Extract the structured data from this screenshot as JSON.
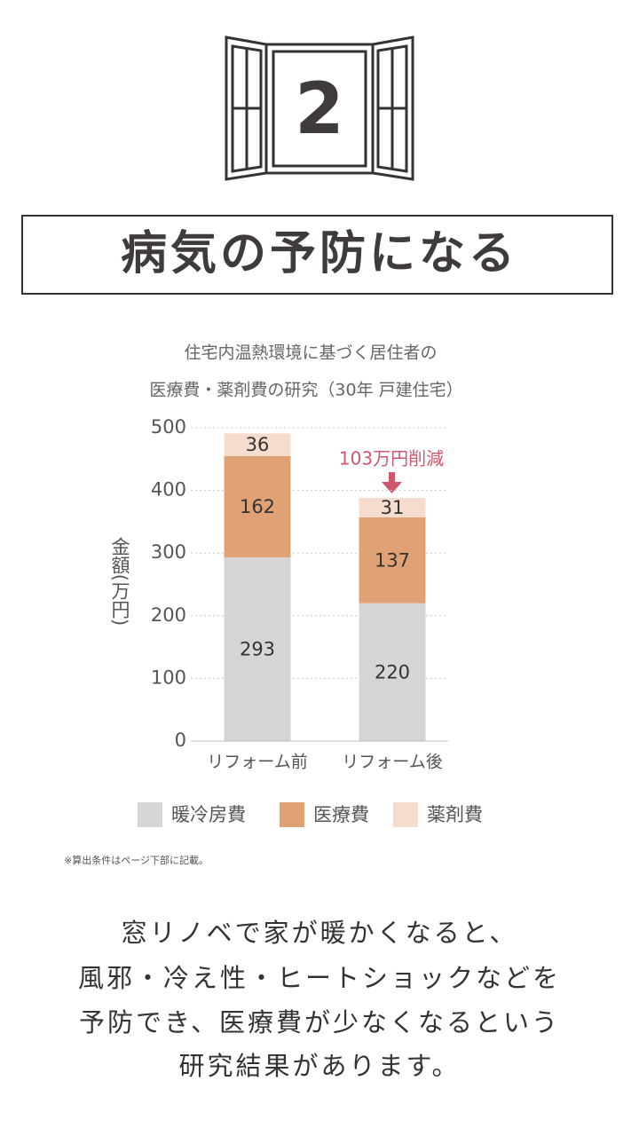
{
  "badge": "2",
  "heading": "病気の予防になる",
  "chart_data": {
    "type": "stacked-bar",
    "title_lines": [
      "住宅内温熱環境に基づく居住者の",
      "医療費・薬剤費の研究（30年 戸建住宅）"
    ],
    "ylabel": "金額(万円)",
    "categories": [
      "リフォーム前",
      "リフォーム後"
    ],
    "series": [
      {
        "name": "暖冷房費",
        "color": "#d6d6d6",
        "values": [
          293,
          220
        ]
      },
      {
        "name": "医療費",
        "color": "#e0a274",
        "values": [
          162,
          137
        ]
      },
      {
        "name": "薬剤費",
        "color": "#f6dccd",
        "values": [
          36,
          31
        ]
      }
    ],
    "ylim": [
      0,
      500
    ],
    "yticks": [
      0,
      100,
      200,
      300,
      400,
      500
    ],
    "grid": true,
    "annotation": "103万円削減"
  },
  "note": "※算出条件はページ下部に記載。",
  "body": [
    "窓リノベで家が暖かくなると、",
    "風邪・冷え性・ヒートショックなどを",
    "予防でき、医療費が少なくなるという",
    "研究結果があります。"
  ]
}
